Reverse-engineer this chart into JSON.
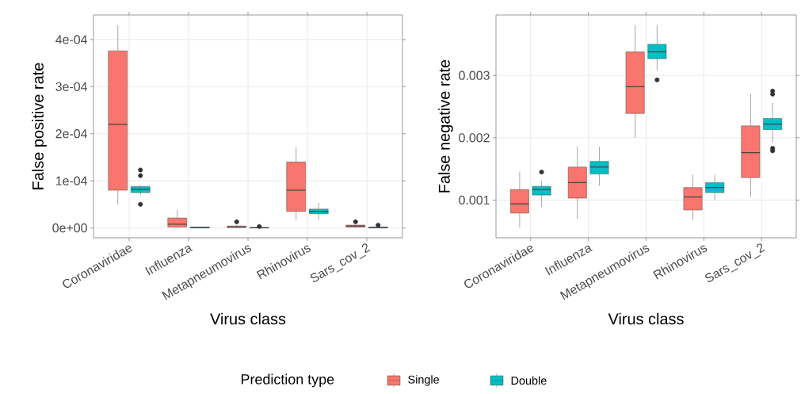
{
  "chart_data": [
    {
      "type": "box",
      "xlabel": "Virus class",
      "ylabel": "False positive rate",
      "legend_title": "Prediction type",
      "legend": "bottom",
      "grid": true,
      "categories": [
        "Coronaviridae",
        "Influenza",
        "Metapneumovirus",
        "Rhinovirus",
        "Sars_cov_2"
      ],
      "ylim": [
        -2.1e-05,
        0.000452
      ],
      "yticks": [
        {
          "value": 0,
          "label": "0e+00"
        },
        {
          "value": 0.0001,
          "label": "1e-04"
        },
        {
          "value": 0.0002,
          "label": "2e-04"
        },
        {
          "value": 0.0003,
          "label": "3e-04"
        },
        {
          "value": 0.0004,
          "label": "4e-04"
        }
      ],
      "series": [
        {
          "name": "Single",
          "color": "#f8766d",
          "boxes": [
            {
              "low": 5e-05,
              "q1": 8e-05,
              "median": 0.00022,
              "q3": 0.000376,
              "high": 0.000431
            },
            {
              "low": 0.0,
              "q1": 2e-06,
              "median": 8e-06,
              "q3": 2.1e-05,
              "high": 3.8e-05
            },
            {
              "low": 0.0,
              "q1": 1e-06,
              "median": 2e-06,
              "q3": 4e-06,
              "high": 6e-06,
              "outliers": [
                1.3e-05
              ]
            },
            {
              "low": 1.7e-05,
              "q1": 3.5e-05,
              "median": 8e-05,
              "q3": 0.00014,
              "high": 0.000171
            },
            {
              "low": 0.0,
              "q1": 2e-06,
              "median": 4e-06,
              "q3": 6e-06,
              "high": 6e-06,
              "outliers": [
                1.3e-05
              ]
            }
          ]
        },
        {
          "name": "Double",
          "color": "#00bfc4",
          "boxes": [
            {
              "low": 6.9e-05,
              "q1": 7.5e-05,
              "median": 8.2e-05,
              "q3": 8.8e-05,
              "high": 9.1e-05,
              "outliers": [
                0.000123,
                0.000111,
                5e-05
              ]
            },
            {
              "low": 0.0,
              "q1": 0.0,
              "median": 1e-06,
              "q3": 2e-06,
              "high": 3e-06
            },
            {
              "low": 0.0,
              "q1": 0.0,
              "median": 5e-07,
              "q3": 1e-06,
              "high": 2e-06,
              "outliers": [
                3e-06
              ]
            },
            {
              "low": 1.7e-05,
              "q1": 3e-05,
              "median": 3.5e-05,
              "q3": 4e-05,
              "high": 5.3e-05
            },
            {
              "low": 0.0,
              "q1": 0.0,
              "median": 1e-06,
              "q3": 2e-06,
              "high": 3e-06,
              "outliers": [
                6e-06
              ]
            }
          ]
        }
      ]
    },
    {
      "type": "box",
      "xlabel": "Virus class",
      "ylabel": "False negative rate",
      "grid": true,
      "categories": [
        "Coronaviridae",
        "Influenza",
        "Metapneumovirus",
        "Rhinovirus",
        "Sars_cov_2"
      ],
      "ylim": [
        0.000394,
        0.00397
      ],
      "yticks": [
        0.001,
        0.002,
        0.003
      ],
      "series": [
        {
          "color": "#f8766d",
          "boxes": [
            {
              "low": 0.00056,
              "q1": 0.00079,
              "median": 0.00094,
              "q3": 0.00117,
              "high": 0.00145
            },
            {
              "low": 0.0007,
              "q1": 0.00103,
              "median": 0.00128,
              "q3": 0.00153,
              "high": 0.00186
            },
            {
              "low": 0.002,
              "q1": 0.00239,
              "median": 0.00282,
              "q3": 0.00338,
              "high": 0.00381
            },
            {
              "low": 0.00068,
              "q1": 0.00084,
              "median": 0.00105,
              "q3": 0.0012,
              "high": 0.00141
            },
            {
              "low": 0.00105,
              "q1": 0.00136,
              "median": 0.00176,
              "q3": 0.00219,
              "high": 0.0027
            }
          ]
        },
        {
          "color": "#00bfc4",
          "boxes": [
            {
              "low": 0.00089,
              "q1": 0.00108,
              "median": 0.00117,
              "q3": 0.00122,
              "high": 0.00131,
              "outliers": [
                0.00145
              ]
            },
            {
              "low": 0.00123,
              "q1": 0.00142,
              "median": 0.00153,
              "q3": 0.00162,
              "high": 0.00186
            },
            {
              "low": 0.00308,
              "q1": 0.00327,
              "median": 0.00338,
              "q3": 0.0035,
              "high": 0.00381,
              "outliers": [
                0.00293
              ]
            },
            {
              "low": 0.001,
              "q1": 0.00112,
              "median": 0.0012,
              "q3": 0.00128,
              "high": 0.00141
            },
            {
              "low": 0.00192,
              "q1": 0.00213,
              "median": 0.00222,
              "q3": 0.00231,
              "high": 0.00256,
              "outliers": [
                0.0027,
                0.00275,
                0.00183,
                0.00179
              ]
            }
          ]
        }
      ]
    }
  ]
}
